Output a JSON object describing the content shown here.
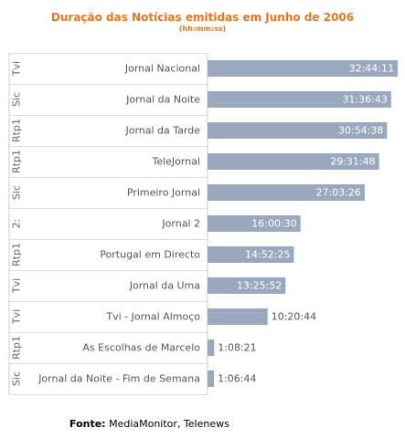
{
  "chart_data": {
    "type": "bar",
    "orientation": "horizontal",
    "title": "Duração das Notícias emitidas em Junho de 2006",
    "subtitle": "(hh:mm:ss)",
    "categories": [
      "Jornal Nacional",
      "Jornal da Noite",
      "Jornal da Tarde",
      "TeleJornal",
      "Primeiro Jornal",
      "Jornal 2",
      "Portugal em Directo",
      "Jornal da Uma",
      "Tvi - Jornal Almoço",
      "As Escolhas de Marcelo",
      "Jornal da Noite - Fim de Semana"
    ],
    "channels": [
      "Tvi",
      "Sic",
      "Rtp1",
      "Rtp1",
      "Sic",
      "2:",
      "Rtp1",
      "Tvi",
      "Tvi",
      "Rtp1",
      "Sic"
    ],
    "values": [
      1964.18,
      1896.72,
      1854.63,
      1771.8,
      1623.43,
      960.5,
      892.42,
      805.87,
      620.73,
      68.35,
      66.73
    ],
    "value_labels": [
      "32:44:11",
      "31:36:43",
      "30:54:38",
      "29:31:48",
      "27:03:26",
      "16:00:30",
      "14:52:25",
      "13:25:52",
      "10:20:44",
      "1:08:21",
      "1:06:44"
    ],
    "value_unit": "minutes",
    "bar_color": "#9aa8bd",
    "grid": false,
    "legend": "none"
  },
  "footer": {
    "source_label": "Fonte:",
    "source_text": " MediaMonitor, Telenews"
  }
}
